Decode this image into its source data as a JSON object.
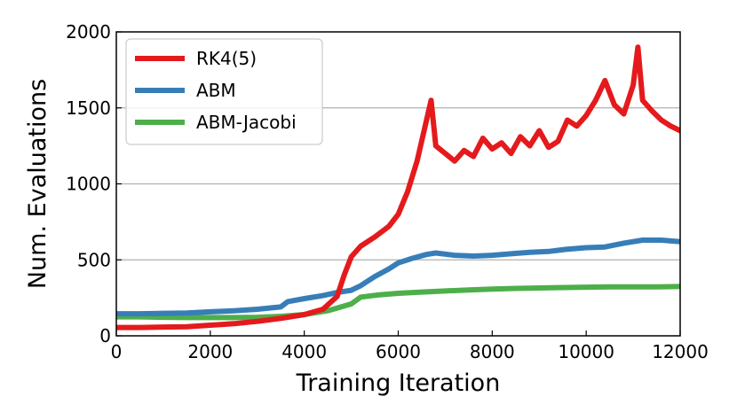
{
  "chart_data": {
    "type": "line",
    "xlabel": "Training Iteration",
    "ylabel": "Num. Evaluations",
    "xlim": [
      0,
      12000
    ],
    "ylim": [
      0,
      2000
    ],
    "xticks": [
      0,
      2000,
      4000,
      6000,
      8000,
      10000,
      12000
    ],
    "yticks": [
      0,
      500,
      1000,
      1500,
      2000
    ],
    "x_tick_labels": [
      "0",
      "2000",
      "4000",
      "6000",
      "8000",
      "10000",
      "12000"
    ],
    "y_tick_labels": [
      "0",
      "500",
      "1000",
      "1500",
      "2000"
    ],
    "grid": "horizontal",
    "legend_position": "top-left",
    "series": [
      {
        "name": "RK4(5)",
        "color": "#e41a1c",
        "x": [
          0,
          500,
          1000,
          1500,
          2000,
          2500,
          3000,
          3500,
          4000,
          4400,
          4700,
          4850,
          5000,
          5200,
          5500,
          5800,
          6000,
          6200,
          6400,
          6550,
          6700,
          6800,
          7000,
          7200,
          7400,
          7600,
          7800,
          8000,
          8200,
          8400,
          8600,
          8800,
          9000,
          9200,
          9400,
          9600,
          9800,
          10000,
          10200,
          10400,
          10600,
          10800,
          11000,
          11100,
          11200,
          11400,
          11600,
          11800,
          12000
        ],
        "y": [
          55,
          55,
          58,
          60,
          70,
          80,
          95,
          115,
          140,
          175,
          260,
          400,
          520,
          590,
          650,
          720,
          800,
          950,
          1150,
          1350,
          1550,
          1250,
          1200,
          1150,
          1220,
          1180,
          1300,
          1230,
          1270,
          1200,
          1310,
          1250,
          1350,
          1240,
          1280,
          1420,
          1380,
          1450,
          1550,
          1680,
          1520,
          1460,
          1650,
          1900,
          1550,
          1480,
          1420,
          1380,
          1350
        ]
      },
      {
        "name": "ABM",
        "color": "#377eb8",
        "x": [
          0,
          500,
          1000,
          1500,
          2000,
          2500,
          3000,
          3500,
          3650,
          4000,
          4400,
          4700,
          5000,
          5200,
          5500,
          5800,
          6000,
          6300,
          6600,
          6800,
          7200,
          7600,
          8000,
          8400,
          8800,
          9200,
          9600,
          10000,
          10400,
          10800,
          11200,
          11600,
          12000
        ],
        "y": [
          145,
          145,
          148,
          150,
          158,
          165,
          175,
          190,
          225,
          245,
          265,
          285,
          300,
          330,
          390,
          440,
          480,
          510,
          535,
          545,
          530,
          525,
          530,
          540,
          550,
          555,
          570,
          580,
          585,
          610,
          630,
          630,
          620
        ]
      },
      {
        "name": "ABM-Jacobi",
        "color": "#4daf4a",
        "x": [
          0,
          500,
          1000,
          1500,
          2000,
          2500,
          3000,
          3500,
          4000,
          4500,
          5000,
          5200,
          5600,
          6000,
          6500,
          7000,
          7500,
          8000,
          8500,
          9000,
          9500,
          10000,
          10500,
          11000,
          11500,
          12000
        ],
        "y": [
          125,
          125,
          122,
          120,
          120,
          120,
          122,
          128,
          140,
          165,
          210,
          255,
          270,
          280,
          288,
          295,
          302,
          308,
          312,
          315,
          318,
          320,
          322,
          322,
          322,
          325
        ]
      }
    ]
  }
}
